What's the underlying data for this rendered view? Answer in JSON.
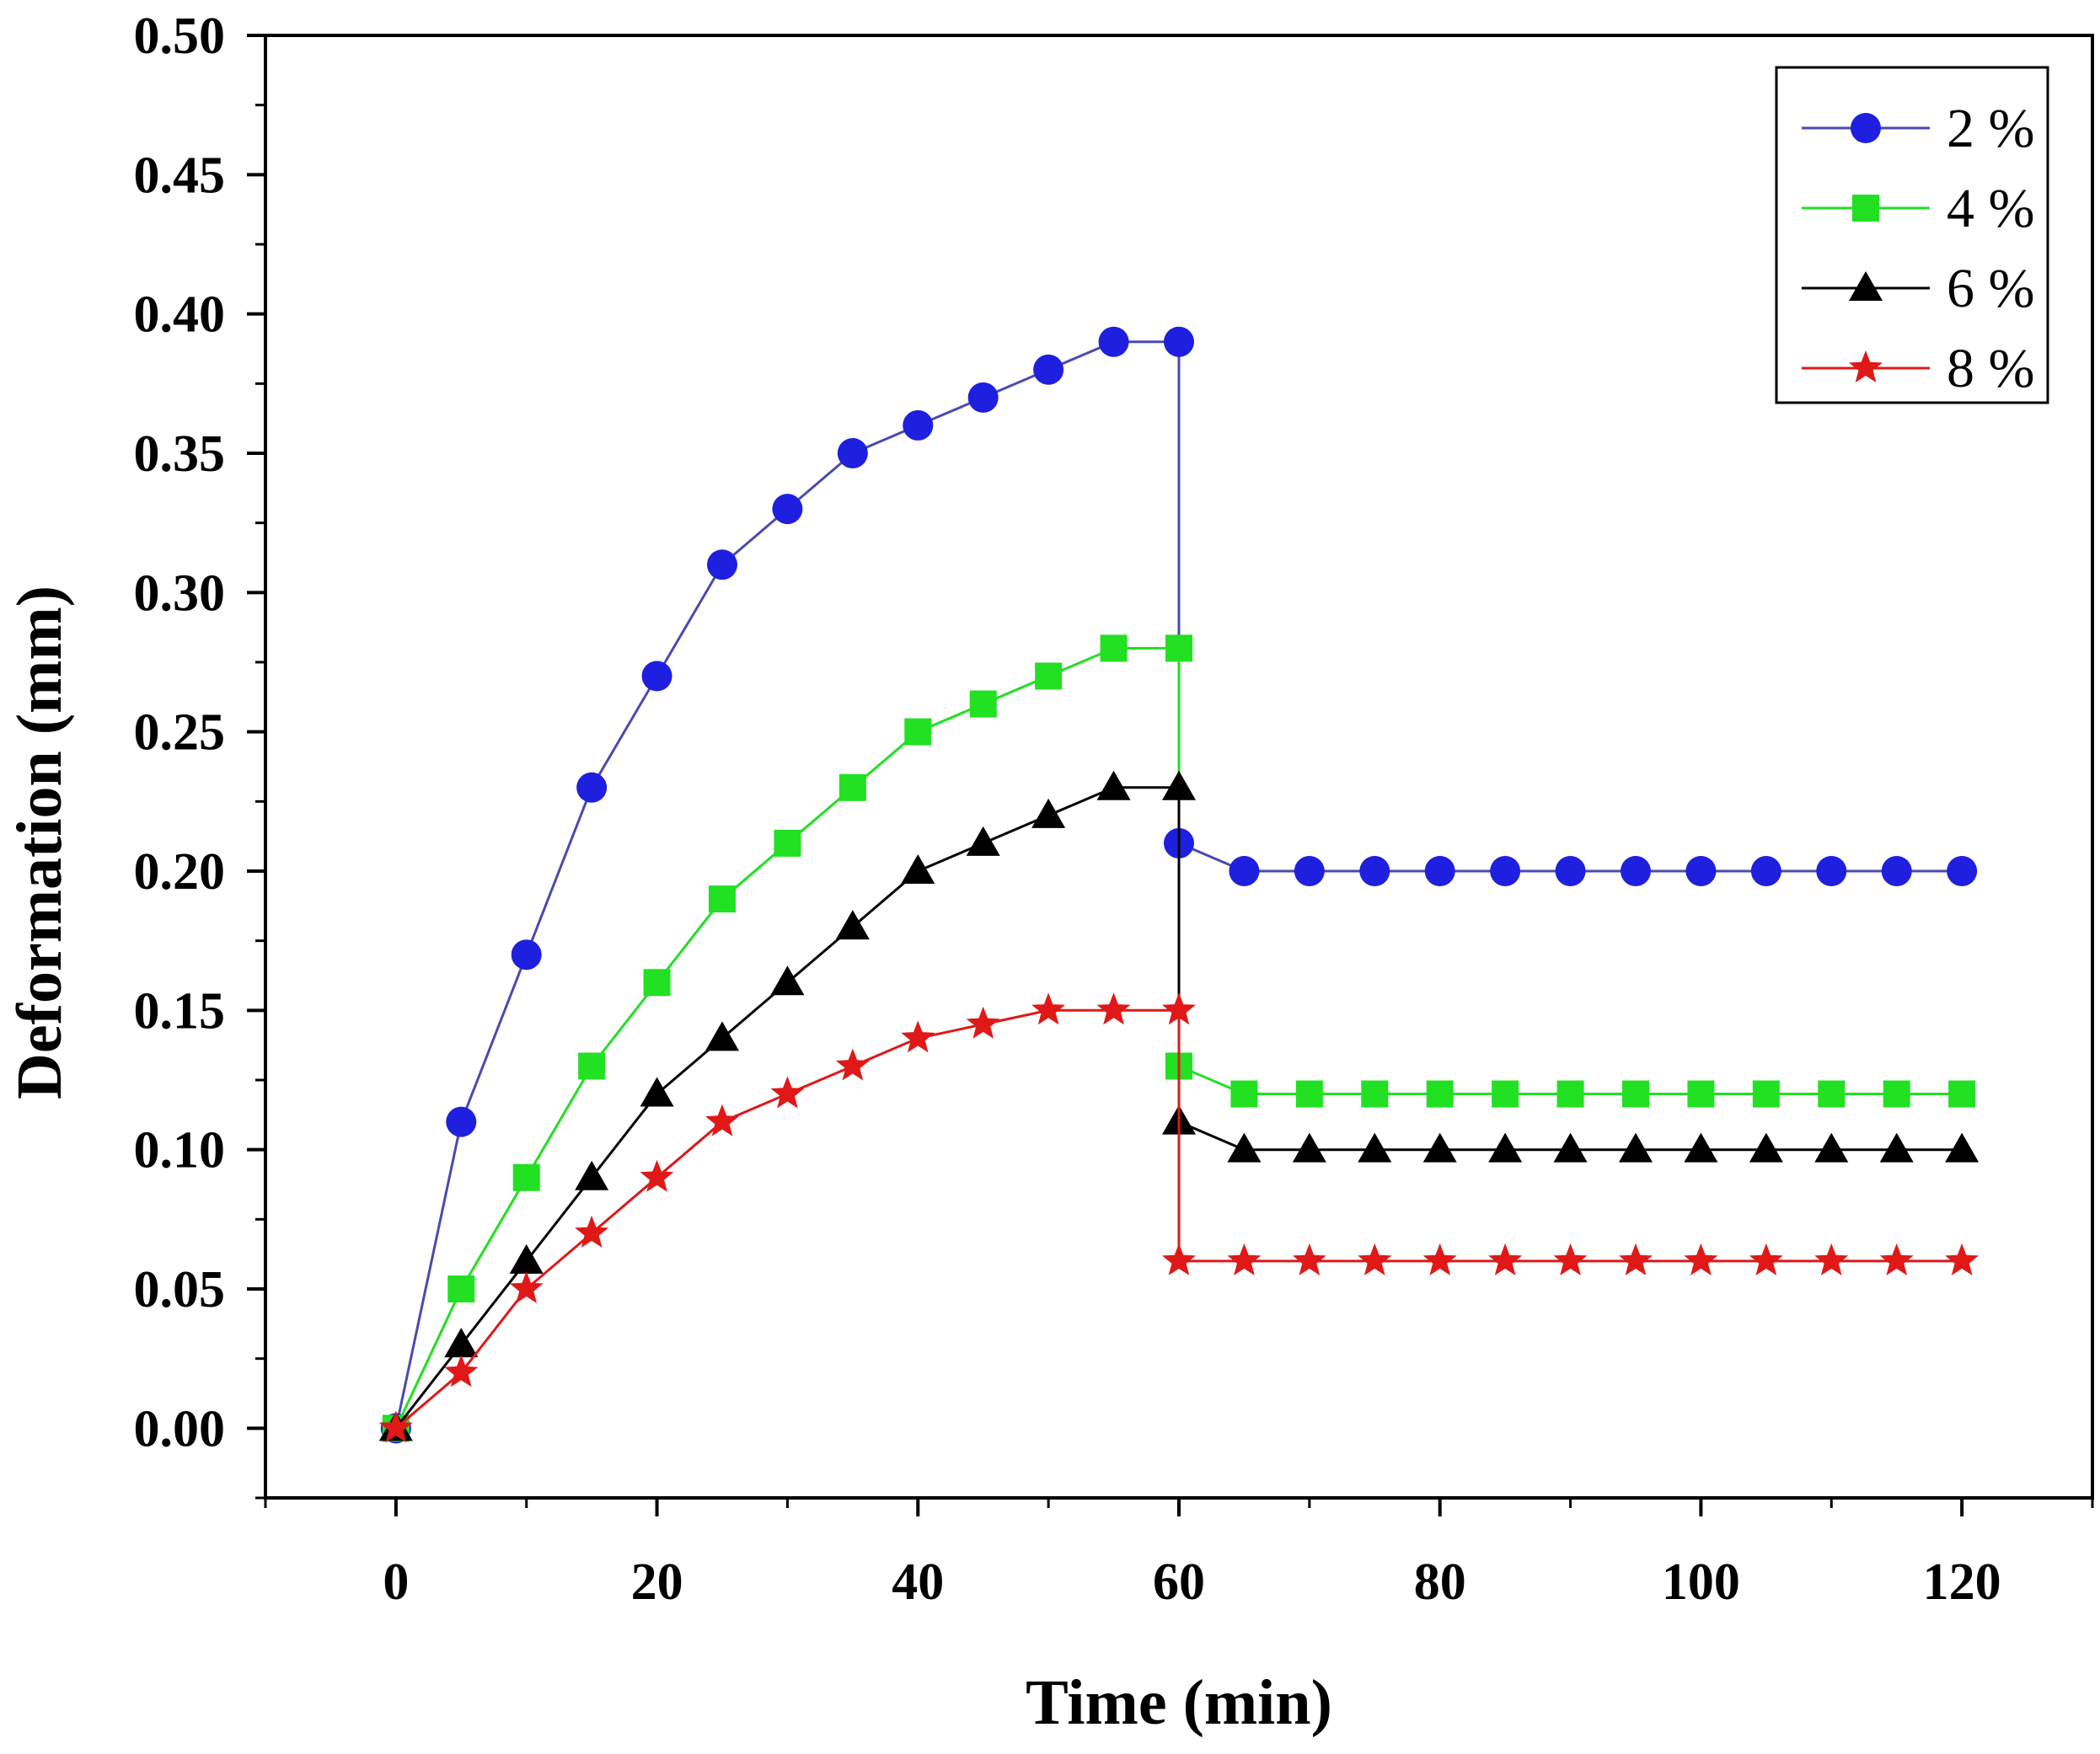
{
  "chart_data": {
    "type": "line",
    "title": "",
    "xlabel": "Time (min)",
    "ylabel": "Deformation (mm)",
    "xlim": [
      -10,
      130
    ],
    "ylim": [
      -0.025,
      0.5
    ],
    "x_ticks": [
      0,
      20,
      40,
      60,
      80,
      100,
      120
    ],
    "x_tick_labels": [
      "0",
      "20",
      "40",
      "60",
      "80",
      "100",
      "120"
    ],
    "y_ticks": [
      0.0,
      0.05,
      0.1,
      0.15,
      0.2,
      0.25,
      0.3,
      0.35,
      0.4,
      0.45,
      0.5
    ],
    "y_tick_labels": [
      "0.00",
      "0.05",
      "0.10",
      "0.15",
      "0.20",
      "0.25",
      "0.30",
      "0.35",
      "0.40",
      "0.45",
      "0.50"
    ],
    "grid": false,
    "legend_position": "top-right",
    "x": [
      0,
      5,
      10,
      15,
      20,
      25,
      30,
      35,
      40,
      45,
      50,
      55,
      60,
      60,
      65,
      70,
      75,
      80,
      85,
      90,
      95,
      100,
      105,
      110,
      115,
      120
    ],
    "series": [
      {
        "name": "2 %",
        "marker": "circle",
        "color": "#1f1fe0",
        "line_color": "#4a4ab0",
        "values": [
          0.0,
          0.11,
          0.17,
          0.23,
          0.27,
          0.31,
          0.33,
          0.35,
          0.36,
          0.37,
          0.38,
          0.39,
          0.39,
          0.21,
          0.2,
          0.2,
          0.2,
          0.2,
          0.2,
          0.2,
          0.2,
          0.2,
          0.2,
          0.2,
          0.2,
          0.2
        ]
      },
      {
        "name": "4 %",
        "marker": "square",
        "color": "#22e022",
        "line_color": "#22e022",
        "values": [
          0.0,
          0.05,
          0.09,
          0.13,
          0.16,
          0.19,
          0.21,
          0.23,
          0.25,
          0.26,
          0.27,
          0.28,
          0.28,
          0.13,
          0.12,
          0.12,
          0.12,
          0.12,
          0.12,
          0.12,
          0.12,
          0.12,
          0.12,
          0.12,
          0.12,
          0.12
        ]
      },
      {
        "name": "6 %",
        "marker": "triangle",
        "color": "#000000",
        "line_color": "#000000",
        "values": [
          0.0,
          0.03,
          0.06,
          0.09,
          0.12,
          0.14,
          0.16,
          0.18,
          0.2,
          0.21,
          0.22,
          0.23,
          0.23,
          0.11,
          0.1,
          0.1,
          0.1,
          0.1,
          0.1,
          0.1,
          0.1,
          0.1,
          0.1,
          0.1,
          0.1,
          0.1
        ]
      },
      {
        "name": "8 %",
        "marker": "star",
        "color": "#e01818",
        "line_color": "#e01818",
        "values": [
          0.0,
          0.02,
          0.05,
          0.07,
          0.09,
          0.11,
          0.12,
          0.13,
          0.14,
          0.145,
          0.15,
          0.15,
          0.15,
          0.06,
          0.06,
          0.06,
          0.06,
          0.06,
          0.06,
          0.06,
          0.06,
          0.06,
          0.06,
          0.06,
          0.06,
          0.06
        ]
      }
    ]
  }
}
